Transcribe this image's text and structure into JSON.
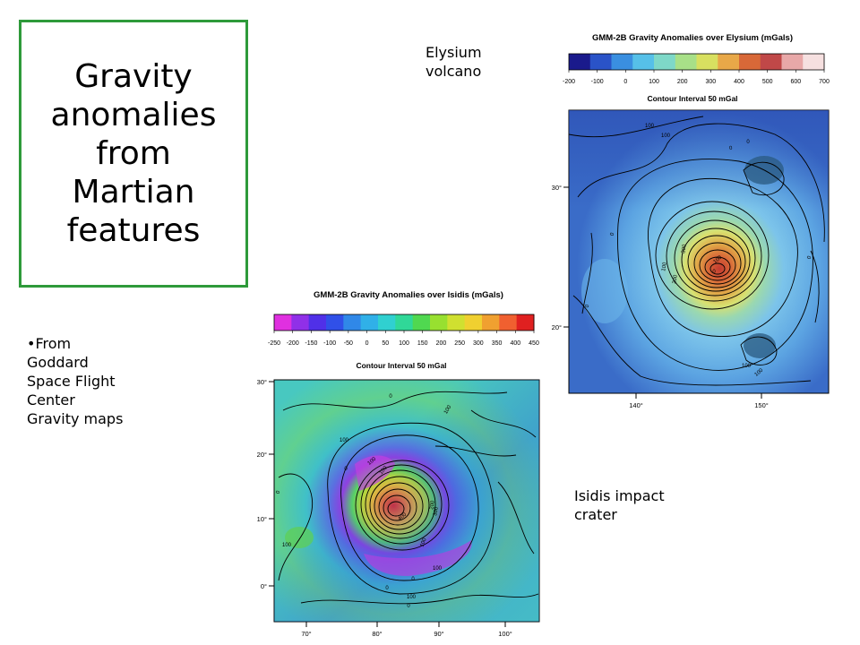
{
  "slide": {
    "title": "Gravity\nanomalies\nfrom\nMartian\nfeatures",
    "bullet_marker": "•",
    "bullet_text": "From\nGoddard\nSpace Flight\nCenter\nGravity maps",
    "label_elysium": "Elysium\nvolcano",
    "label_isidis": "Isidis impact\ncrater"
  },
  "elysium_map": {
    "title": "GMM-2B Gravity Anomalies over Elysium (mGals)",
    "scale_ticks": [
      "-200",
      "-100",
      "0",
      "100",
      "200",
      "300",
      "400",
      "500",
      "600",
      "700"
    ],
    "scale_colors": [
      "#1a1a8c",
      "#2a53c8",
      "#3a8fe0",
      "#56c0e8",
      "#7ed8c8",
      "#a8e088",
      "#d8e060",
      "#e8a848",
      "#d86838",
      "#c04848",
      "#e8a8a8",
      "#f6e0e0"
    ],
    "contour_interval": "Contour Interval 50 mGal",
    "lat_labels": [
      "30°",
      "20°"
    ],
    "lon_labels": [
      "140°",
      "150°"
    ],
    "contour_labels": [
      "100",
      "0",
      "100",
      "0",
      "0",
      "100",
      "200",
      "300",
      "0",
      "100",
      "100",
      "0",
      "0",
      "100"
    ]
  },
  "isidis_map": {
    "title": "GMM-2B Gravity Anomalies over Isidis (mGals)",
    "scale_ticks": [
      "-250",
      "-200",
      "-150",
      "-100",
      "-50",
      "0",
      "50",
      "100",
      "150",
      "200",
      "250",
      "300",
      "350",
      "400",
      "450"
    ],
    "scale_colors": [
      "#e030e0",
      "#9030e8",
      "#5030e8",
      "#3050e8",
      "#3088e8",
      "#30b0e8",
      "#30d0d0",
      "#30d898",
      "#50d850",
      "#98e030",
      "#d0e030",
      "#f0d030",
      "#f0a030",
      "#f06030",
      "#e02020"
    ],
    "contour_interval": "Contour Interval 50 mGal",
    "lat_labels": [
      "30°",
      "20°",
      "10°",
      "0°"
    ],
    "lon_labels": [
      "70°",
      "80°",
      "90°",
      "100°"
    ],
    "contour_labels": [
      "0",
      "100",
      "100",
      "0",
      "100",
      "100",
      "0",
      "100",
      "0",
      "100",
      "300",
      "200",
      "100",
      "400",
      "0",
      "100",
      "0"
    ]
  }
}
